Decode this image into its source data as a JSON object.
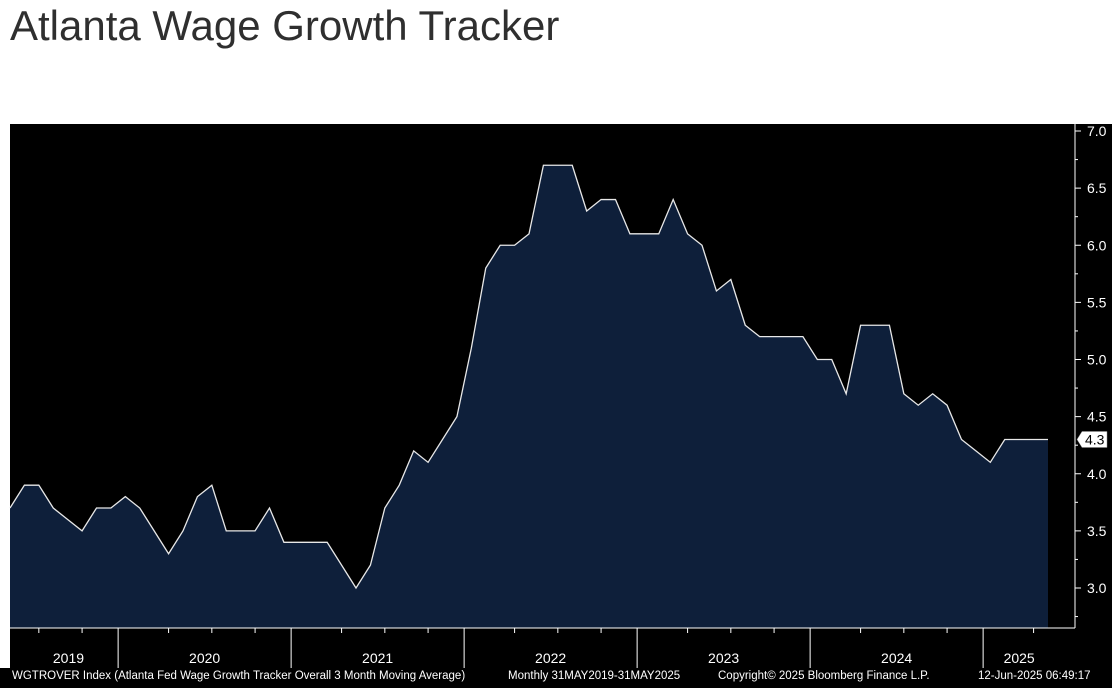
{
  "title": "Atlanta Wage Growth Tracker",
  "chart_data": {
    "type": "area",
    "x_start": "2019-05",
    "x_end": "2025-05",
    "frequency": "monthly",
    "year_labels": [
      "2019",
      "2020",
      "2021",
      "2022",
      "2023",
      "2024",
      "2025"
    ],
    "y_ticks": [
      "3.0",
      "3.5",
      "4.0",
      "4.5",
      "5.0",
      "5.5",
      "6.0",
      "6.5",
      "7.0"
    ],
    "ylim": [
      2.65,
      7.05
    ],
    "y_axis_side": "right",
    "last_value_label": "4.3",
    "series": [
      {
        "values": [
          3.7,
          3.9,
          3.9,
          3.7,
          3.6,
          3.5,
          3.7,
          3.7,
          3.8,
          3.7,
          3.5,
          3.3,
          3.5,
          3.8,
          3.9,
          3.5,
          3.5,
          3.5,
          3.7,
          3.4,
          3.4,
          3.4,
          3.4,
          3.2,
          3.0,
          3.2,
          3.7,
          3.9,
          4.2,
          4.1,
          4.3,
          4.5,
          5.1,
          5.8,
          6.0,
          6.0,
          6.1,
          6.7,
          6.7,
          6.7,
          6.3,
          6.4,
          6.4,
          6.1,
          6.1,
          6.1,
          6.4,
          6.1,
          6.0,
          5.6,
          5.7,
          5.3,
          5.2,
          5.2,
          5.2,
          5.2,
          5.0,
          5.0,
          4.7,
          5.3,
          5.3,
          5.3,
          4.7,
          4.6,
          4.7,
          4.6,
          4.3,
          4.2,
          4.1,
          4.3,
          4.3,
          4.3,
          4.3
        ]
      }
    ],
    "colors": {
      "background": "#000000",
      "fill": "#0e1f3a",
      "line": "#e8e8e8",
      "axis": "#ffffff"
    },
    "grid": false
  },
  "footer": {
    "index": "WGTROVER Index (Atlanta Fed Wage Growth Tracker Overall 3 Month Moving Average)",
    "range": "Monthly 31MAY2019-31MAY2025",
    "copyright": "Copyright© 2025 Bloomberg Finance L.P.",
    "timestamp": "12-Jun-2025 06:49:17"
  }
}
